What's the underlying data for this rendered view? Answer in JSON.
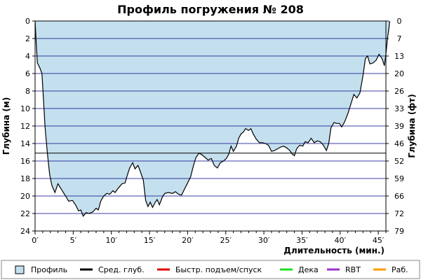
{
  "chart_data": {
    "type": "area",
    "title": "Профиль погружения № 208",
    "xlabel": "Длительность (мин.)",
    "ylabel": "Глубина (м)",
    "ylabel_right": "Глубина (фт)",
    "x_ticks": [
      "0′",
      "5′",
      "10′",
      "15′",
      "20′",
      "25′",
      "30′",
      "35′",
      "40′",
      "45′"
    ],
    "y_ticks": [
      "0",
      "2",
      "4",
      "6",
      "8",
      "10",
      "12",
      "14",
      "16",
      "18",
      "20",
      "22",
      "24"
    ],
    "y_ticks_right": [
      "0",
      "7",
      "13",
      "20",
      "26",
      "33",
      "39",
      "46",
      "52",
      "59",
      "66",
      "72",
      "79"
    ],
    "xlim": [
      0,
      46
    ],
    "ylim": [
      0,
      24
    ],
    "y_inverted": true,
    "avg_depth": 15.1,
    "legend_placement": "bottom",
    "legend": [
      {
        "label": "Профиль",
        "color": "#c4e0ef",
        "kind": "box"
      },
      {
        "label": "Сред. глуб.",
        "color": "#000000",
        "kind": "line"
      },
      {
        "label": "Быстр. подъем/спуск",
        "color": "#e00000",
        "kind": "line"
      },
      {
        "label": "Дека",
        "color": "#22dd22",
        "kind": "line"
      },
      {
        "label": "RBT",
        "color": "#9933cc",
        "kind": "line"
      },
      {
        "label": "Раб.",
        "color": "#ff9900",
        "kind": "line"
      }
    ],
    "colors": {
      "area_fill": "#c4e0ef",
      "profile_line": "#000000",
      "gridline": "#000080",
      "avg_line": "#000000"
    },
    "series": [
      {
        "name": "Профиль",
        "points": [
          [
            0,
            0
          ],
          [
            0.15,
            2.5
          ],
          [
            0.3,
            4.8
          ],
          [
            0.6,
            5.3
          ],
          [
            0.9,
            6
          ],
          [
            1.1,
            9
          ],
          [
            1.3,
            12
          ],
          [
            1.6,
            15
          ],
          [
            1.9,
            17.5
          ],
          [
            2.2,
            18.8
          ],
          [
            2.6,
            19.6
          ],
          [
            3.0,
            18.6
          ],
          [
            3.5,
            19.3
          ],
          [
            4.0,
            20
          ],
          [
            4.4,
            20.6
          ],
          [
            4.9,
            20.5
          ],
          [
            5.3,
            21
          ],
          [
            5.7,
            21.7
          ],
          [
            6.0,
            21.6
          ],
          [
            6.3,
            22.3
          ],
          [
            6.7,
            21.9
          ],
          [
            7.1,
            22
          ],
          [
            7.6,
            21.8
          ],
          [
            8.0,
            21.4
          ],
          [
            8.3,
            21.6
          ],
          [
            8.6,
            20.6
          ],
          [
            9.0,
            20
          ],
          [
            9.4,
            19.7
          ],
          [
            9.8,
            19.8
          ],
          [
            10.2,
            19.4
          ],
          [
            10.5,
            19.6
          ],
          [
            10.9,
            19.1
          ],
          [
            11.4,
            18.6
          ],
          [
            11.8,
            18.5
          ],
          [
            12.1,
            17.6
          ],
          [
            12.4,
            16.8
          ],
          [
            12.8,
            16.2
          ],
          [
            13.1,
            16.9
          ],
          [
            13.5,
            16.5
          ],
          [
            13.8,
            17.2
          ],
          [
            14.2,
            18.2
          ],
          [
            14.5,
            20.5
          ],
          [
            14.8,
            21.2
          ],
          [
            15.1,
            20.7
          ],
          [
            15.4,
            21.3
          ],
          [
            15.7,
            20.8
          ],
          [
            16.0,
            20.4
          ],
          [
            16.3,
            21
          ],
          [
            16.7,
            20.1
          ],
          [
            17.0,
            19.7
          ],
          [
            17.5,
            19.6
          ],
          [
            18.0,
            19.7
          ],
          [
            18.4,
            19.5
          ],
          [
            18.8,
            19.8
          ],
          [
            19.2,
            19.9
          ],
          [
            19.6,
            19.2
          ],
          [
            20.0,
            18.5
          ],
          [
            20.4,
            17.8
          ],
          [
            20.8,
            16.4
          ],
          [
            21.1,
            15.6
          ],
          [
            21.5,
            15.1
          ],
          [
            21.9,
            15.3
          ],
          [
            22.3,
            15.6
          ],
          [
            22.7,
            15.9
          ],
          [
            23.1,
            15.7
          ],
          [
            23.5,
            16.5
          ],
          [
            23.9,
            16.8
          ],
          [
            24.3,
            16.2
          ],
          [
            24.7,
            16
          ],
          [
            25.1,
            15.7
          ],
          [
            25.4,
            15.2
          ],
          [
            25.7,
            14.3
          ],
          [
            26.0,
            14.9
          ],
          [
            26.4,
            14.3
          ],
          [
            26.7,
            13.4
          ],
          [
            27.0,
            12.9
          ],
          [
            27.3,
            12.7
          ],
          [
            27.6,
            12.3
          ],
          [
            28.0,
            12.5
          ],
          [
            28.3,
            12.3
          ],
          [
            28.6,
            12.9
          ],
          [
            29.0,
            13.5
          ],
          [
            29.4,
            13.9
          ],
          [
            29.8,
            13.9
          ],
          [
            30.2,
            14
          ],
          [
            30.6,
            14.2
          ],
          [
            31.0,
            14.9
          ],
          [
            31.4,
            14.8
          ],
          [
            31.8,
            14.6
          ],
          [
            32.2,
            14.4
          ],
          [
            32.6,
            14.3
          ],
          [
            33.0,
            14.5
          ],
          [
            33.4,
            14.8
          ],
          [
            33.7,
            15.2
          ],
          [
            34.0,
            15.4
          ],
          [
            34.3,
            14.6
          ],
          [
            34.7,
            14.2
          ],
          [
            35.1,
            14.3
          ],
          [
            35.4,
            13.8
          ],
          [
            35.8,
            13.9
          ],
          [
            36.2,
            13.4
          ],
          [
            36.6,
            13.9
          ],
          [
            37.0,
            13.7
          ],
          [
            37.4,
            13.8
          ],
          [
            37.8,
            14.2
          ],
          [
            38.2,
            14.8
          ],
          [
            38.5,
            14
          ],
          [
            38.8,
            12.2
          ],
          [
            39.2,
            11.6
          ],
          [
            39.5,
            11.7
          ],
          [
            39.9,
            11.7
          ],
          [
            40.2,
            12.1
          ],
          [
            40.6,
            11.5
          ],
          [
            41.0,
            10.6
          ],
          [
            41.4,
            9.5
          ],
          [
            41.8,
            8.4
          ],
          [
            42.2,
            8.8
          ],
          [
            42.6,
            8.2
          ],
          [
            43.0,
            6.2
          ],
          [
            43.3,
            4.3
          ],
          [
            43.6,
            4
          ],
          [
            43.9,
            4.9
          ],
          [
            44.3,
            4.8
          ],
          [
            44.7,
            4.5
          ],
          [
            45.1,
            3.8
          ],
          [
            45.5,
            4.3
          ],
          [
            45.8,
            5.1
          ],
          [
            46.0,
            3.8
          ],
          [
            46.2,
            2
          ],
          [
            46.4,
            0.8
          ],
          [
            46.5,
            0
          ]
        ]
      }
    ]
  }
}
